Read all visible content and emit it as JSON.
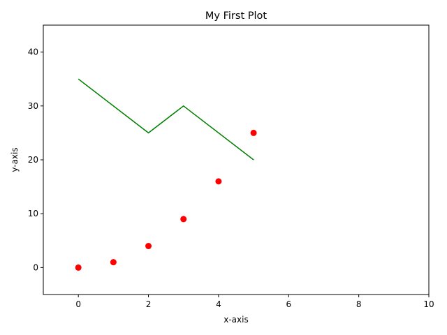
{
  "chart_data": {
    "type": "line",
    "title": "My First Plot",
    "xlabel": "x-axis",
    "ylabel": "y-axis",
    "xlim": [
      -1,
      10
    ],
    "ylim": [
      -5,
      45
    ],
    "xticks": [
      "0",
      "2",
      "4",
      "6",
      "8",
      "10"
    ],
    "yticks": [
      "0",
      "10",
      "20",
      "30",
      "40"
    ],
    "grid": false,
    "series": [
      {
        "kind": "scatter",
        "color": "#ff0000",
        "marker": "circle",
        "x": [
          0,
          1,
          2,
          3,
          4,
          5
        ],
        "y": [
          0,
          1,
          4,
          9,
          16,
          25
        ]
      },
      {
        "kind": "line",
        "color": "#008000",
        "x": [
          0,
          2,
          3,
          5
        ],
        "y": [
          35,
          25,
          30,
          20
        ]
      }
    ]
  }
}
